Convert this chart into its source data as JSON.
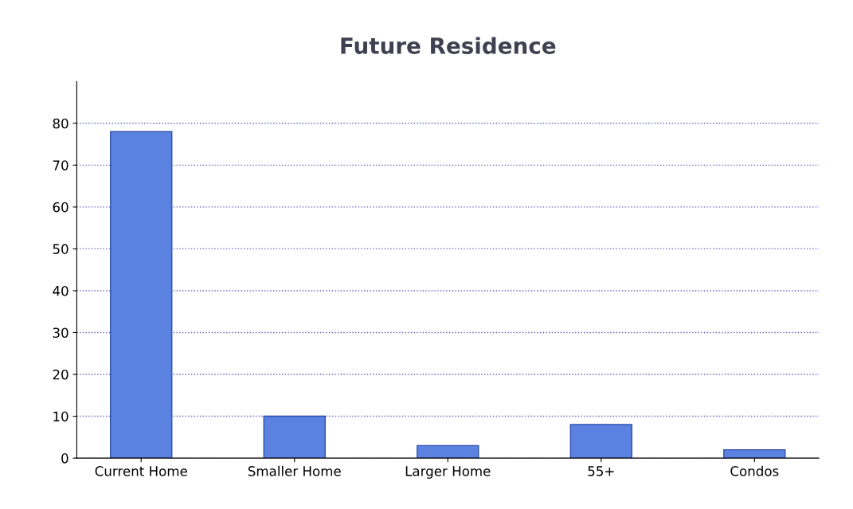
{
  "chart_data": {
    "type": "bar",
    "title": "Future Residence",
    "categories": [
      "Current Home",
      "Smaller Home",
      "Larger Home",
      "55+",
      "Condos"
    ],
    "values": [
      78,
      10,
      3,
      8,
      2
    ],
    "color": "#5b82e0",
    "ylim": [
      0,
      90
    ],
    "yticks": [
      0,
      10,
      20,
      30,
      40,
      50,
      60,
      70,
      80
    ],
    "grid": "y"
  }
}
